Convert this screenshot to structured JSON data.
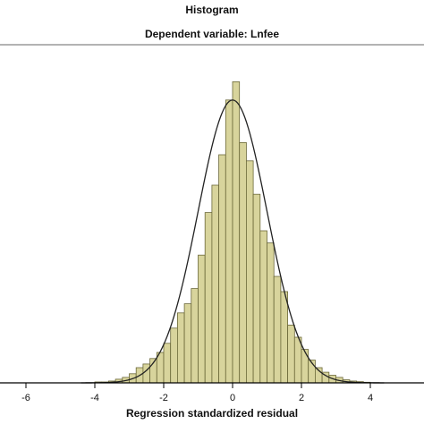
{
  "chart_data": {
    "type": "bar",
    "title": "Histogram",
    "subtitle": "Dependent variable: Lnfee",
    "xlabel": "Regression standardized residual",
    "ylabel": "",
    "xlim": [
      -7,
      5
    ],
    "ylim": [
      0,
      1.0
    ],
    "xticks": [
      -6,
      -4,
      -2,
      0,
      2,
      4
    ],
    "grid": false,
    "legend": "none",
    "bin_width": 0.2,
    "bins": [
      {
        "x": -3.9,
        "y": 0.003
      },
      {
        "x": -3.7,
        "y": 0.003
      },
      {
        "x": -3.5,
        "y": 0.006
      },
      {
        "x": -3.3,
        "y": 0.012
      },
      {
        "x": -3.1,
        "y": 0.018
      },
      {
        "x": -2.9,
        "y": 0.03
      },
      {
        "x": -2.7,
        "y": 0.05
      },
      {
        "x": -2.5,
        "y": 0.062
      },
      {
        "x": -2.3,
        "y": 0.08
      },
      {
        "x": -2.1,
        "y": 0.1
      },
      {
        "x": -1.9,
        "y": 0.13
      },
      {
        "x": -1.7,
        "y": 0.18
      },
      {
        "x": -1.5,
        "y": 0.23
      },
      {
        "x": -1.3,
        "y": 0.26
      },
      {
        "x": -1.1,
        "y": 0.31
      },
      {
        "x": -0.9,
        "y": 0.42
      },
      {
        "x": -0.7,
        "y": 0.56
      },
      {
        "x": -0.5,
        "y": 0.65
      },
      {
        "x": -0.3,
        "y": 0.75
      },
      {
        "x": -0.1,
        "y": 0.93
      },
      {
        "x": 0.1,
        "y": 0.99
      },
      {
        "x": 0.3,
        "y": 0.79
      },
      {
        "x": 0.5,
        "y": 0.73
      },
      {
        "x": 0.7,
        "y": 0.62
      },
      {
        "x": 0.9,
        "y": 0.5
      },
      {
        "x": 1.1,
        "y": 0.46
      },
      {
        "x": 1.3,
        "y": 0.35
      },
      {
        "x": 1.5,
        "y": 0.3
      },
      {
        "x": 1.7,
        "y": 0.19
      },
      {
        "x": 1.9,
        "y": 0.15
      },
      {
        "x": 2.1,
        "y": 0.11
      },
      {
        "x": 2.3,
        "y": 0.075
      },
      {
        "x": 2.5,
        "y": 0.05
      },
      {
        "x": 2.7,
        "y": 0.035
      },
      {
        "x": 2.9,
        "y": 0.025
      },
      {
        "x": 3.1,
        "y": 0.018
      },
      {
        "x": 3.3,
        "y": 0.01
      },
      {
        "x": 3.5,
        "y": 0.006
      },
      {
        "x": 3.7,
        "y": 0.004
      },
      {
        "x": 3.9,
        "y": 0.002
      }
    ],
    "normal_curve": {
      "mean": 0,
      "sd": 1,
      "peak": 0.93
    },
    "colors": {
      "bar_fill": "#d8d49c",
      "bar_stroke": "#6b6839",
      "curve": "#222222",
      "axis": "#000000",
      "frame_line": "#9a9a9a"
    }
  }
}
